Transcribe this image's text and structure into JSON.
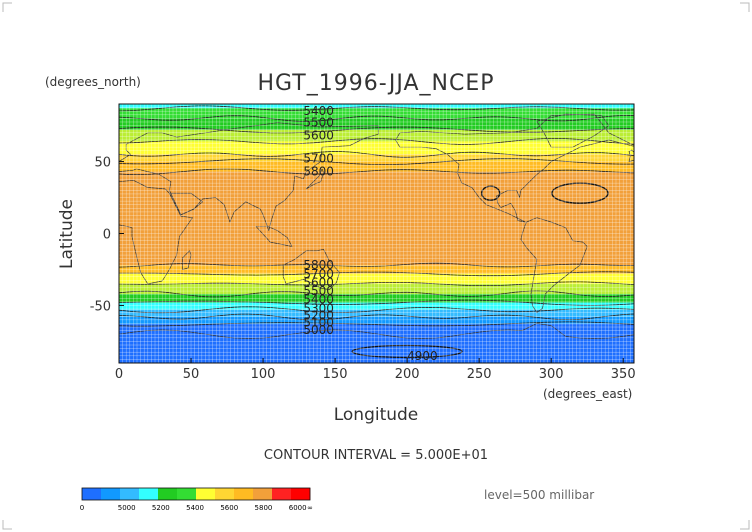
{
  "chart_data": {
    "type": "heatmap",
    "title": "HGT_1996-JJA_NCEP",
    "xlabel": "Longitude",
    "ylabel": "Latitude",
    "x_unit_label": "(degrees_east)",
    "y_unit_label": "(degrees_north)",
    "xlim": [
      0,
      357.5
    ],
    "ylim": [
      -90,
      90
    ],
    "x_ticks": [
      0,
      50,
      100,
      150,
      200,
      250,
      300,
      350
    ],
    "y_ticks": [
      50,
      0,
      -50
    ],
    "grid": true,
    "contour_interval_text": "CONTOUR INTERVAL = 5.000E+01",
    "level_text": "level=500 millibar",
    "bands": [
      {
        "lat_top": 90,
        "lat_bottom": 87,
        "color": "#33ffff"
      },
      {
        "lat_top": 87,
        "lat_bottom": 80,
        "color": "#33dd33"
      },
      {
        "lat_top": 80,
        "lat_bottom": 72,
        "color": "#22cc22"
      },
      {
        "lat_top": 72,
        "lat_bottom": 64,
        "color": "#bbee33"
      },
      {
        "lat_top": 64,
        "lat_bottom": 55,
        "color": "#ffff33"
      },
      {
        "lat_top": 55,
        "lat_bottom": 50,
        "color": "#ffd633"
      },
      {
        "lat_top": 50,
        "lat_bottom": 43,
        "color": "#ffbb22"
      },
      {
        "lat_top": 43,
        "lat_bottom": -22,
        "color": "#f2a03a"
      },
      {
        "lat_top": -22,
        "lat_bottom": -28,
        "color": "#ffbb22"
      },
      {
        "lat_top": -28,
        "lat_bottom": -35,
        "color": "#ffff33"
      },
      {
        "lat_top": -35,
        "lat_bottom": -42,
        "color": "#bbee33"
      },
      {
        "lat_top": -42,
        "lat_bottom": -48,
        "color": "#22cc22"
      },
      {
        "lat_top": -48,
        "lat_bottom": -53,
        "color": "#33ffff"
      },
      {
        "lat_top": -53,
        "lat_bottom": -58,
        "color": "#33bbff"
      },
      {
        "lat_top": -58,
        "lat_bottom": -63,
        "color": "#1199ff"
      },
      {
        "lat_top": -63,
        "lat_bottom": -90,
        "color": "#1e6fff"
      }
    ],
    "contour_labels": [
      {
        "text": "5400",
        "lon": 128,
        "lat": 85
      },
      {
        "text": "5500",
        "lon": 128,
        "lat": 77
      },
      {
        "text": "5600",
        "lon": 128,
        "lat": 68
      },
      {
        "text": "5700",
        "lon": 128,
        "lat": 52
      },
      {
        "text": "5800",
        "lon": 128,
        "lat": 43
      },
      {
        "text": "5800",
        "lon": 128,
        "lat": -22
      },
      {
        "text": "5700",
        "lon": 128,
        "lat": -28
      },
      {
        "text": "5600",
        "lon": 128,
        "lat": -34
      },
      {
        "text": "5500",
        "lon": 128,
        "lat": -40
      },
      {
        "text": "5400",
        "lon": 128,
        "lat": -46
      },
      {
        "text": "5300",
        "lon": 128,
        "lat": -52
      },
      {
        "text": "5200",
        "lon": 128,
        "lat": -57
      },
      {
        "text": "5100",
        "lon": 128,
        "lat": -62
      },
      {
        "text": "5000",
        "lon": 128,
        "lat": -67
      },
      {
        "text": "4900",
        "lon": 200,
        "lat": -85
      }
    ],
    "colorbar": {
      "labels": [
        "0",
        "5000",
        "5200",
        "5400",
        "5600",
        "5800",
        "6000",
        "∞"
      ],
      "colors": [
        "#1e6fff",
        "#1199ff",
        "#33bbff",
        "#33ffff",
        "#22cc22",
        "#33dd33",
        "#ffff33",
        "#ffd633",
        "#ffbb22",
        "#f2a03a",
        "#ff2222",
        "#ff0000"
      ]
    }
  }
}
